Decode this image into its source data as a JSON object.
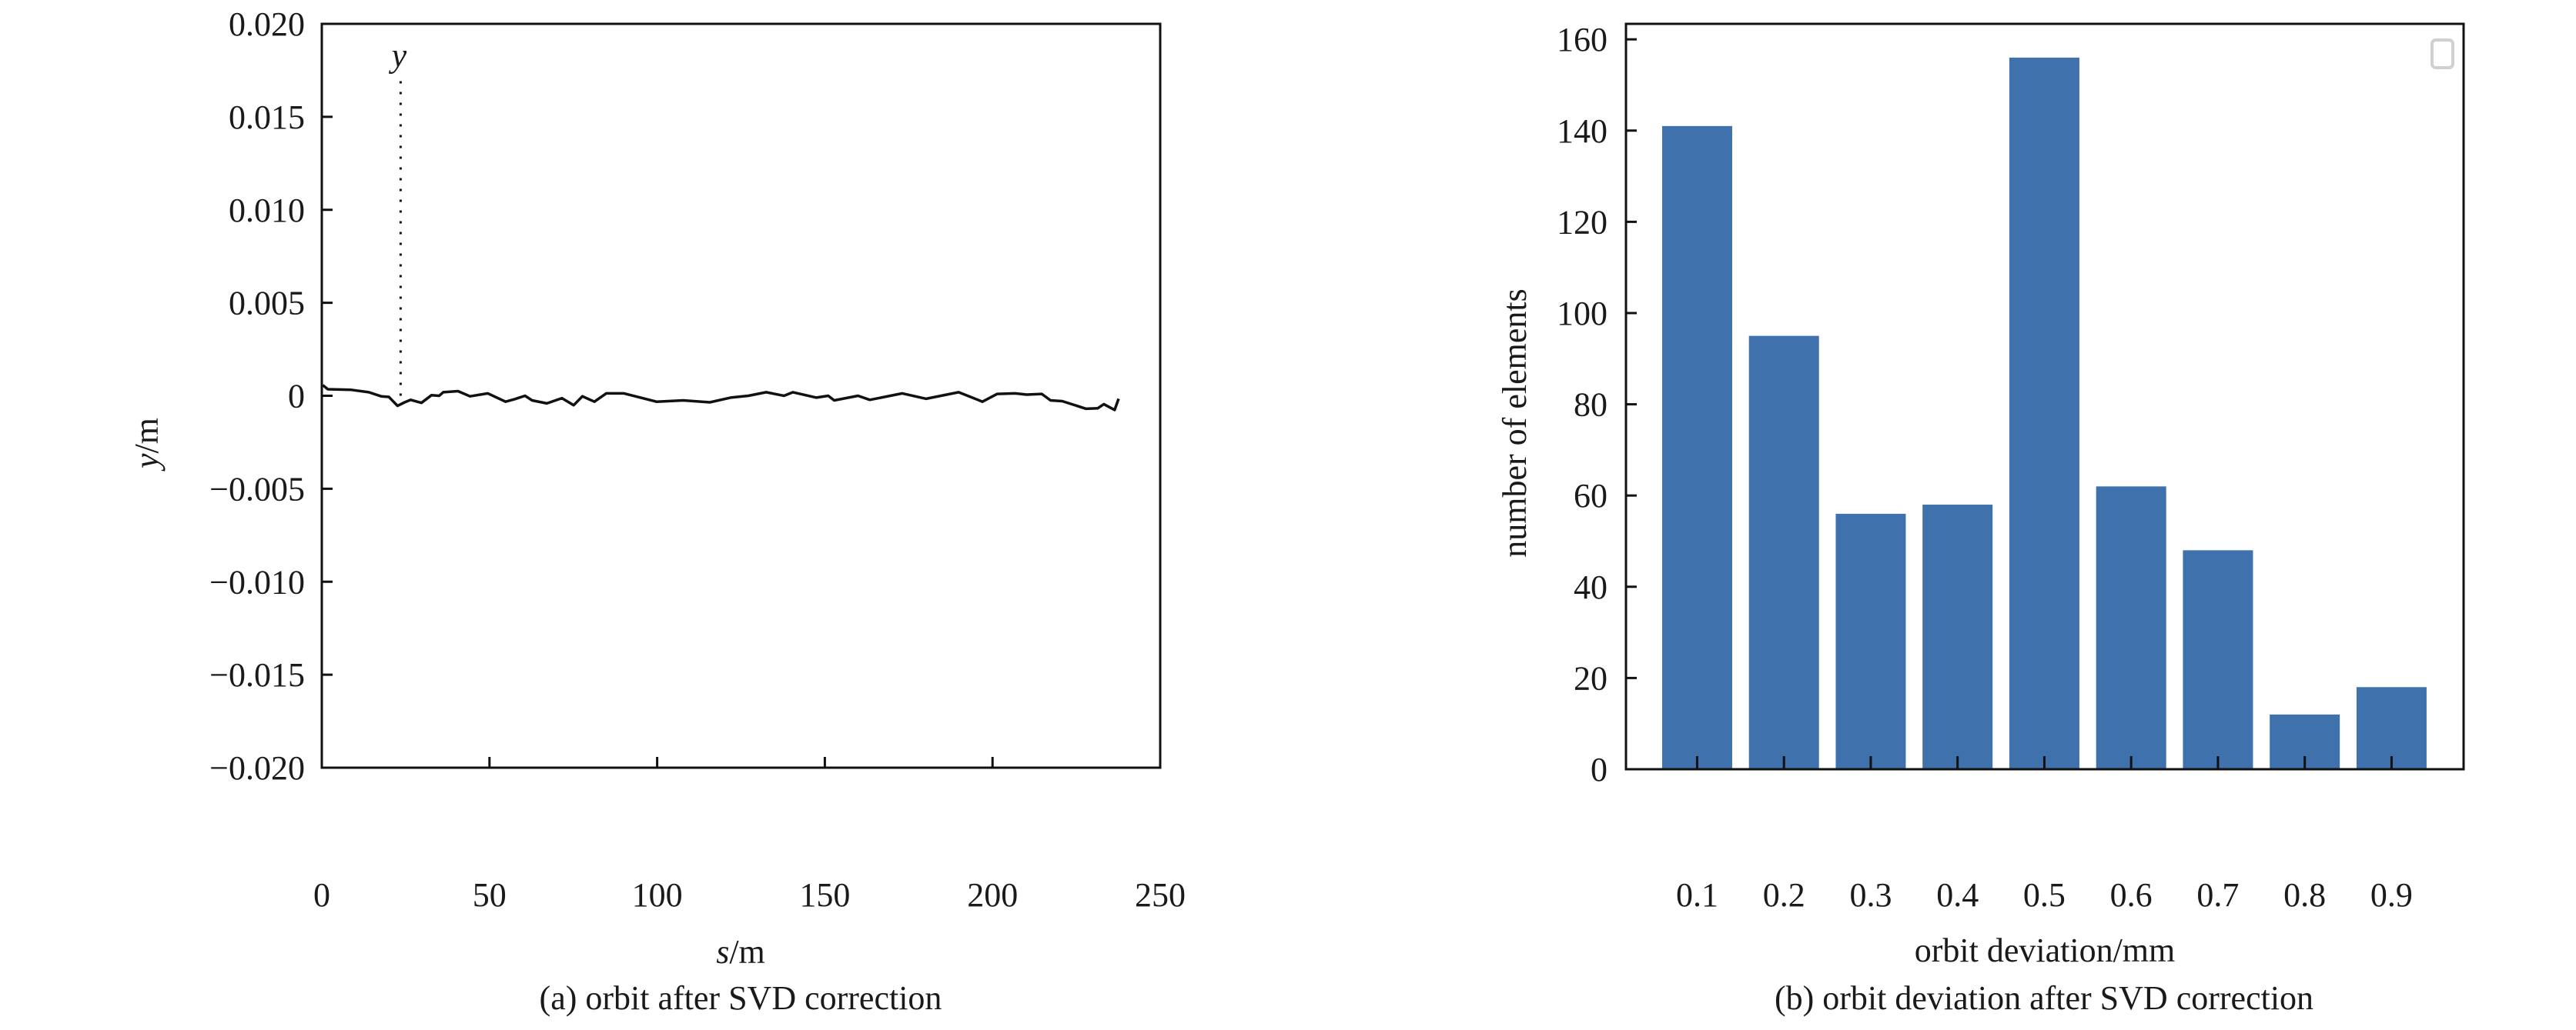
{
  "chart_data": [
    {
      "type": "line",
      "caption": "(a) orbit after SVD correction",
      "xlabel_italic": "s",
      "xlabel_unit": "/m",
      "ylabel_italic": "y",
      "ylabel_unit": "/m",
      "xlim": [
        0,
        250
      ],
      "ylim": [
        -0.02,
        0.02
      ],
      "xticks": [
        "0",
        "50",
        "100",
        "150",
        "200",
        "250"
      ],
      "xtick_values": [
        0,
        50,
        100,
        150,
        200,
        250
      ],
      "yticks": [
        "0.020",
        "0.015",
        "0.010",
        "0.005",
        "0",
        "−0.005",
        "−0.010",
        "−0.015",
        "−0.020"
      ],
      "ytick_values": [
        0.02,
        0.015,
        0.01,
        0.005,
        0,
        -0.005,
        -0.01,
        -0.015,
        -0.02
      ],
      "grid": false,
      "annotation": {
        "text": "y",
        "s": 23.5,
        "y_from": 0,
        "y_to": 0.0172
      },
      "series": [
        {
          "name": "y",
          "color": "#111111",
          "x": [
            0.3,
            1.8,
            8.8,
            14,
            17.7,
            20,
            22.6,
            24.7,
            26.5,
            29.7,
            32.7,
            35,
            36.2,
            40.6,
            44.2,
            49.5,
            54.8,
            57.4,
            60.6,
            62.7,
            67.1,
            71.6,
            75.1,
            77.7,
            81.3,
            84.8,
            90.1,
            99.8,
            107.8,
            115.7,
            121.9,
            127.2,
            132.5,
            137.8,
            140.5,
            147.5,
            151,
            152.8,
            159.9,
            163.4,
            173.1,
            180.2,
            189.9,
            197,
            201.4,
            206.7,
            210.2,
            214.7,
            217.3,
            220.8,
            227.9,
            231.4,
            233.2,
            236.4,
            237.6
          ],
          "y": [
            0.00057,
            0.00035,
            0.00032,
            0.00019,
            -3e-05,
            -6e-05,
            -0.00054,
            -0.00035,
            -0.00022,
            -0.00038,
            3e-05,
            0,
            0.00019,
            0.00025,
            -3e-05,
            0.00013,
            -0.00032,
            -0.00019,
            0,
            -0.00025,
            -0.00041,
            -0.00013,
            -0.00051,
            -3e-05,
            -0.00032,
            0.00013,
            0.00013,
            -0.00032,
            -0.00025,
            -0.00035,
            -0.0001,
            0,
            0.00019,
            0,
            0.00019,
            -0.0001,
            0,
            -0.00025,
            0,
            -0.00022,
            0.00013,
            -0.00016,
            0.00019,
            -0.00032,
            0.0001,
            0.00013,
            6e-05,
            0.0001,
            -0.00025,
            -0.00029,
            -0.0007,
            -0.00067,
            -0.00045,
            -0.00076,
            -0.00016
          ]
        }
      ]
    },
    {
      "type": "bar",
      "caption": "(b) orbit deviation after SVD correction",
      "xlabel": "orbit deviation/mm",
      "ylabel": "number of elements",
      "categories": [
        "0.1",
        "0.2",
        "0.3",
        "0.4",
        "0.5",
        "0.6",
        "0.7",
        "0.8",
        "0.9"
      ],
      "values": [
        141,
        95,
        56,
        58,
        156,
        62,
        48,
        12,
        18
      ],
      "bar_color": "#3f72ad",
      "xlim": [
        0.018,
        0.983
      ],
      "ylim": [
        0,
        163.4
      ],
      "yticks": [
        "0",
        "20",
        "40",
        "60",
        "80",
        "100",
        "120",
        "140",
        "160"
      ],
      "ytick_values": [
        0,
        20,
        40,
        60,
        80,
        100,
        120,
        140,
        160
      ],
      "grid": false,
      "legend": "top-right (empty)"
    }
  ]
}
